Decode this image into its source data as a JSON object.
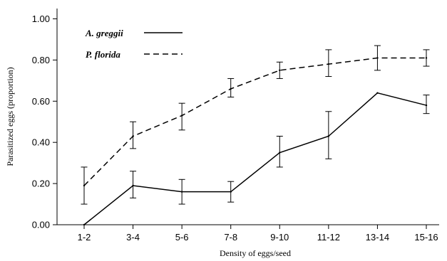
{
  "chart_data": {
    "type": "line",
    "xlabel": "Density of eggs/seed",
    "ylabel": "Parasitized eggs (proportion)",
    "categories": [
      "1-2",
      "3-4",
      "5-6",
      "7-8",
      "9-10",
      "11-12",
      "13-14",
      "15-16"
    ],
    "ylim": [
      0,
      1.05
    ],
    "yticks": [
      "0.00",
      "0.20",
      "0.40",
      "0.60",
      "0.80",
      "1.00"
    ],
    "grid": false,
    "legend_position": "top-left",
    "series": [
      {
        "name": "A. greggii",
        "line_style": "solid",
        "color": "#000000",
        "values": [
          0.0,
          0.19,
          0.16,
          0.16,
          0.35,
          0.43,
          0.64,
          0.58
        ],
        "err_low": [
          null,
          0.13,
          0.1,
          0.11,
          0.28,
          0.32,
          null,
          0.54
        ],
        "err_high": [
          null,
          0.26,
          0.22,
          0.21,
          0.43,
          0.55,
          null,
          0.63
        ]
      },
      {
        "name": "P. florida",
        "line_style": "dashed",
        "color": "#000000",
        "values": [
          0.19,
          0.43,
          0.53,
          0.66,
          0.75,
          0.78,
          0.81,
          0.81
        ],
        "err_low": [
          0.1,
          0.37,
          0.46,
          0.62,
          0.71,
          0.72,
          0.75,
          0.77
        ],
        "err_high": [
          0.28,
          0.5,
          0.59,
          0.71,
          0.79,
          0.85,
          0.87,
          0.85
        ]
      }
    ]
  }
}
